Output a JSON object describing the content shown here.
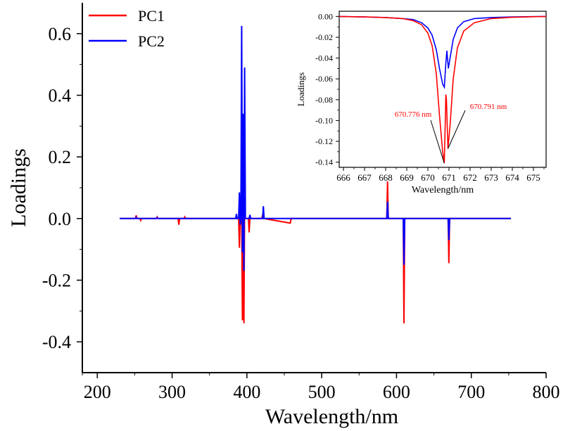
{
  "colors": {
    "pc1": "#ff0000",
    "pc2": "#0000ff",
    "axis": "#000000",
    "annotation": "#ff0000"
  },
  "chart_data": [
    {
      "type": "line",
      "title": "",
      "xlabel": "Wavelength/nm",
      "ylabel": "Loadings",
      "xlim": [
        180,
        800
      ],
      "ylim": [
        -0.5,
        0.7
      ],
      "xticks": [
        "200",
        "300",
        "400",
        "500",
        "600",
        "700",
        "800"
      ],
      "xtick_values": [
        200,
        300,
        400,
        500,
        600,
        700,
        800
      ],
      "yticks": [
        "-0.4",
        "-0.2",
        "0.0",
        "0.2",
        "0.4",
        "0.6"
      ],
      "ytick_values": [
        -0.4,
        -0.2,
        0.0,
        0.2,
        0.4,
        0.6
      ],
      "grid": false,
      "legend": "top-left",
      "series": [
        {
          "name": "PC1",
          "x": [
            230,
            251,
            252,
            253,
            257,
            258,
            259,
            279,
            280,
            281,
            308,
            309,
            310,
            316,
            317,
            318,
            370,
            385,
            386,
            387,
            389,
            390,
            391,
            393,
            394,
            395,
            396,
            397,
            398,
            399,
            402,
            403,
            404,
            420,
            421,
            422,
            423,
            458,
            459,
            460,
            520,
            587,
            588,
            589,
            590,
            609,
            610,
            611,
            612,
            669,
            670,
            671,
            672,
            753
          ],
          "y": [
            0.0,
            0.0,
            0.01,
            0.0,
            0.0,
            -0.006,
            0.0,
            0.0,
            0.005,
            0.0,
            0.0,
            -0.02,
            0.0,
            0.0,
            0.005,
            0.0,
            0.0,
            0.0,
            0.008,
            0.0,
            0.0,
            -0.095,
            0.0,
            0.0,
            -0.33,
            0.02,
            -0.34,
            0.05,
            0.0,
            0.0,
            0.0,
            -0.045,
            0.0,
            0.0,
            0.012,
            0.0,
            0.0,
            -0.015,
            0.0,
            0.0,
            0.0,
            0.0,
            0.12,
            0.0,
            0.0,
            0.0,
            -0.34,
            0.0,
            0.0,
            0.0,
            -0.145,
            0.0,
            0.0,
            0.0
          ]
        },
        {
          "name": "PC2",
          "x": [
            230,
            251,
            252,
            253,
            279,
            280,
            281,
            370,
            385,
            386,
            387,
            389,
            390,
            391,
            392,
            393,
            394,
            395,
            396,
            397,
            398,
            399,
            403,
            404,
            405,
            421,
            422,
            423,
            520,
            587,
            588,
            589,
            590,
            609,
            610,
            611,
            612,
            669,
            670,
            671,
            672,
            753
          ],
          "y": [
            0.0,
            0.0,
            0.004,
            0.0,
            0.0,
            0.003,
            0.0,
            0.0,
            0.0,
            0.015,
            0.0,
            0.0,
            0.085,
            -0.02,
            0.0,
            0.625,
            -0.11,
            0.34,
            -0.17,
            0.49,
            0.0,
            0.0,
            0.0,
            0.012,
            0.0,
            0.0,
            0.04,
            0.0,
            0.0,
            0.0,
            0.055,
            0.0,
            0.0,
            0.0,
            -0.15,
            0.0,
            0.0,
            0.0,
            -0.07,
            0.0,
            0.0,
            0.0
          ]
        }
      ]
    },
    {
      "type": "line",
      "title": "",
      "xlabel": "Wavelength/nm",
      "ylabel": "Loadings",
      "xlim": [
        665.8,
        675.6
      ],
      "ylim": [
        -0.145,
        0.005
      ],
      "xticks": [
        "666",
        "667",
        "668",
        "669",
        "670",
        "671",
        "672",
        "673",
        "674",
        "675"
      ],
      "xtick_values": [
        666,
        667,
        668,
        669,
        670,
        671,
        672,
        673,
        674,
        675
      ],
      "yticks": [
        "0.00",
        "-0.02",
        "-0.04",
        "-0.06",
        "-0.08",
        "-0.10",
        "-0.12",
        "-0.14"
      ],
      "ytick_values": [
        0.0,
        -0.02,
        -0.04,
        -0.06,
        -0.08,
        -0.1,
        -0.12,
        -0.14
      ],
      "grid": false,
      "legend": "none",
      "annotations": [
        {
          "label": "670.776 nm",
          "x": 670.776,
          "y": -0.141
        },
        {
          "label": "670.791 nm",
          "x": 670.95,
          "y": -0.127
        }
      ],
      "series": [
        {
          "name": "PC1",
          "x": [
            665.8,
            667.0,
            668.0,
            668.8,
            669.3,
            669.7,
            670.0,
            670.2,
            670.4,
            670.55,
            670.7,
            670.776,
            670.82,
            670.85,
            670.88,
            670.95,
            671.05,
            671.2,
            671.4,
            671.7,
            672.2,
            673.0,
            674.0,
            675.6
          ],
          "y": [
            0.0,
            -0.0005,
            -0.001,
            -0.002,
            -0.004,
            -0.008,
            -0.016,
            -0.028,
            -0.055,
            -0.095,
            -0.13,
            -0.141,
            -0.105,
            -0.075,
            -0.08,
            -0.127,
            -0.105,
            -0.06,
            -0.03,
            -0.014,
            -0.006,
            -0.002,
            -0.0008,
            0.0
          ]
        },
        {
          "name": "PC2",
          "x": [
            665.8,
            667.0,
            668.0,
            668.8,
            669.3,
            669.7,
            670.0,
            670.2,
            670.4,
            670.55,
            670.7,
            670.78,
            670.85,
            670.9,
            670.97,
            671.05,
            671.2,
            671.4,
            671.7,
            672.2,
            673.0,
            674.0,
            675.6
          ],
          "y": [
            0.0,
            -0.0005,
            -0.001,
            -0.002,
            -0.003,
            -0.006,
            -0.011,
            -0.018,
            -0.032,
            -0.05,
            -0.065,
            -0.068,
            -0.045,
            -0.033,
            -0.05,
            -0.04,
            -0.022,
            -0.011,
            -0.005,
            -0.002,
            -0.001,
            -0.0005,
            0.0
          ]
        }
      ]
    }
  ]
}
